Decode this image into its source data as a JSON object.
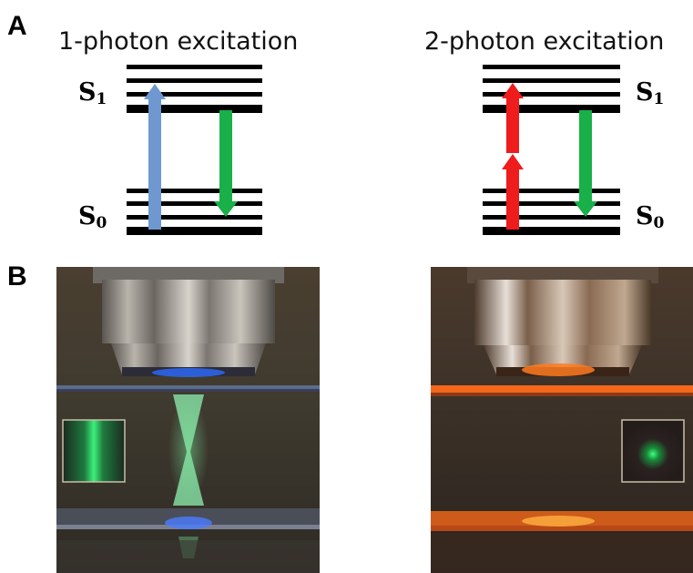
{
  "panels": {
    "a": {
      "letter": "A",
      "left_title": "1-photon excitation",
      "right_title": "2-photon excitation",
      "state_symbol": "S",
      "excited_index": "1",
      "ground_index": "0"
    },
    "b": {
      "letter": "B"
    }
  },
  "colors": {
    "one_photon_excitation": "#6f98d0",
    "two_photon_excitation": "#ee1c1c",
    "emission": "#19b04a",
    "energy_levels": "#000000"
  }
}
